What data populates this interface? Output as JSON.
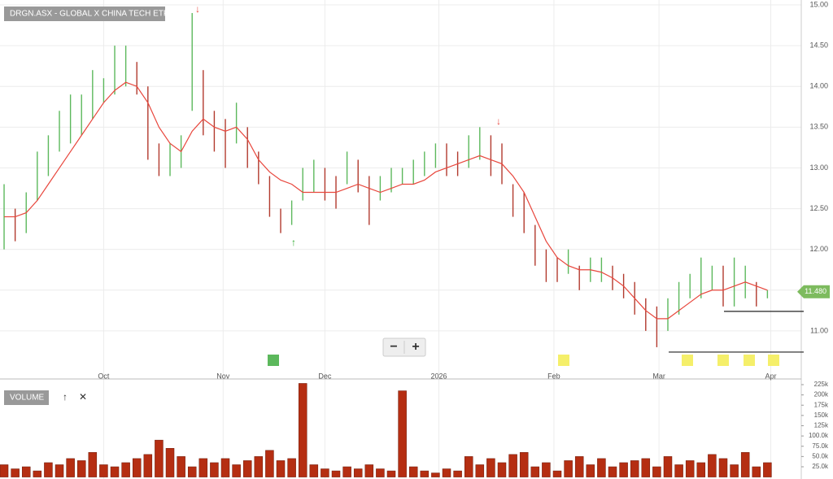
{
  "chart_data": {
    "type": "ohlc",
    "title": "DRGN.ASX - GLOBAL X CHINA TECH ETF",
    "up_color": "#5cb85c",
    "down_color": "#b23a2e",
    "ma_color": "#e8463c",
    "x": [
      0,
      1,
      2,
      3,
      4,
      5,
      6,
      7,
      8,
      9,
      10,
      11,
      12,
      13,
      14,
      15,
      16,
      17,
      18,
      19,
      20,
      21,
      22,
      23,
      24,
      25,
      26,
      27,
      28,
      29,
      30,
      31,
      32,
      33,
      34,
      35,
      36,
      37,
      38,
      39,
      40,
      41,
      42,
      43,
      44,
      45,
      46,
      47,
      48,
      49,
      50,
      51,
      52,
      53,
      54,
      55,
      56,
      57,
      58,
      59,
      60,
      61,
      62,
      63,
      64,
      65,
      66,
      67,
      68,
      69
    ],
    "high": [
      12.8,
      12.5,
      12.7,
      13.2,
      13.4,
      13.7,
      13.9,
      13.9,
      14.2,
      14.1,
      14.5,
      14.5,
      14.3,
      14.0,
      13.3,
      13.3,
      13.4,
      14.9,
      14.2,
      13.7,
      13.6,
      13.8,
      13.5,
      13.2,
      12.9,
      12.5,
      12.6,
      13.0,
      13.1,
      13.0,
      12.9,
      13.2,
      13.1,
      12.9,
      12.9,
      13.0,
      13.0,
      13.1,
      13.2,
      13.3,
      13.3,
      13.2,
      13.4,
      13.5,
      13.4,
      13.3,
      12.8,
      12.7,
      12.3,
      12.0,
      11.9,
      12.0,
      11.8,
      11.9,
      11.9,
      11.8,
      11.7,
      11.6,
      11.4,
      11.3,
      11.4,
      11.6,
      11.7,
      11.9,
      11.8,
      11.8,
      11.9,
      11.8,
      11.6,
      11.5
    ],
    "low": [
      12.0,
      12.1,
      12.2,
      12.6,
      12.9,
      13.2,
      13.3,
      13.4,
      13.6,
      13.8,
      13.9,
      14.0,
      13.9,
      13.1,
      12.9,
      12.9,
      13.0,
      13.7,
      13.4,
      13.2,
      13.0,
      13.3,
      13.0,
      12.8,
      12.4,
      12.2,
      12.3,
      12.6,
      12.7,
      12.6,
      12.5,
      12.8,
      12.7,
      12.3,
      12.6,
      12.7,
      12.8,
      12.8,
      12.9,
      13.0,
      12.9,
      12.9,
      13.0,
      13.1,
      12.9,
      12.8,
      12.4,
      12.2,
      11.8,
      11.6,
      11.6,
      11.7,
      11.5,
      11.6,
      11.6,
      11.5,
      11.4,
      11.2,
      11.0,
      10.8,
      11.0,
      11.2,
      11.4,
      11.4,
      11.5,
      11.3,
      11.3,
      11.4,
      11.3,
      11.4
    ],
    "ma": [
      12.4,
      12.4,
      12.45,
      12.6,
      12.8,
      13.0,
      13.2,
      13.4,
      13.6,
      13.8,
      13.95,
      14.05,
      14.0,
      13.8,
      13.5,
      13.3,
      13.2,
      13.45,
      13.6,
      13.5,
      13.45,
      13.5,
      13.35,
      13.1,
      12.95,
      12.85,
      12.8,
      12.7,
      12.7,
      12.7,
      12.7,
      12.75,
      12.8,
      12.75,
      12.7,
      12.75,
      12.8,
      12.8,
      12.85,
      12.95,
      13.0,
      13.05,
      13.1,
      13.15,
      13.1,
      13.05,
      12.9,
      12.7,
      12.4,
      12.1,
      11.9,
      11.8,
      11.75,
      11.75,
      11.72,
      11.65,
      11.55,
      11.4,
      11.25,
      11.15,
      11.15,
      11.25,
      11.35,
      11.45,
      11.5,
      11.5,
      11.55,
      11.6,
      11.55,
      11.5
    ],
    "last_price": 11.48,
    "last_price_label": "11.480",
    "levels": [
      11.24,
      10.74
    ],
    "xlim": [
      -0.37,
      72.06
    ],
    "xticks": [
      {
        "value": 9,
        "label": "Oct"
      },
      {
        "value": 19.8,
        "label": "Nov"
      },
      {
        "value": 29,
        "label": "Dec"
      },
      {
        "value": 39.3,
        "label": "2026"
      },
      {
        "value": 49.7,
        "label": "Feb"
      },
      {
        "value": 59.2,
        "label": "Mar"
      },
      {
        "value": 69.3,
        "label": "Apr"
      }
    ],
    "ylim": [
      10.52,
      15.06
    ],
    "yticks": [
      {
        "value": 11,
        "label": "11.00"
      },
      {
        "value": 11.5,
        "label": "11.50"
      },
      {
        "value": 12,
        "label": "12.00"
      },
      {
        "value": 12.5,
        "label": "12.50"
      },
      {
        "value": 13,
        "label": "13.00"
      },
      {
        "value": 13.5,
        "label": "13.50"
      },
      {
        "value": 14,
        "label": "14.00"
      },
      {
        "value": 14.5,
        "label": "14.50"
      },
      {
        "value": 15,
        "label": "15.00"
      }
    ],
    "volume_title": "VOLUME",
    "volume_color": "#b52e12",
    "volume": [
      30000,
      20000,
      25000,
      15000,
      35000,
      30000,
      45000,
      40000,
      60000,
      30000,
      25000,
      35000,
      45000,
      55000,
      90000,
      70000,
      50000,
      25000,
      45000,
      35000,
      45000,
      30000,
      40000,
      50000,
      65000,
      40000,
      45000,
      228000,
      30000,
      20000,
      15000,
      25000,
      20000,
      30000,
      20000,
      15000,
      210000,
      25000,
      15000,
      10000,
      20000,
      15000,
      50000,
      30000,
      45000,
      35000,
      55000,
      60000,
      25000,
      35000,
      15000,
      40000,
      50000,
      30000,
      45000,
      25000,
      35000,
      40000,
      45000,
      25000,
      50000,
      30000,
      40000,
      35000,
      55000,
      45000,
      30000,
      60000,
      25000,
      35000
    ],
    "vlim": [
      0,
      230900
    ],
    "vticks": [
      {
        "value": 25000,
        "label": "25.0k"
      },
      {
        "value": 50000,
        "label": "50.0k"
      },
      {
        "value": 75000,
        "label": "75.0k"
      },
      {
        "value": 100000,
        "label": "100.0k"
      },
      {
        "value": 125000,
        "label": "125k"
      },
      {
        "value": 150000,
        "label": "150k"
      },
      {
        "value": 175000,
        "label": "175k"
      },
      {
        "value": 200000,
        "label": "200k"
      },
      {
        "value": 225000,
        "label": "225k"
      }
    ],
    "zoom_out": "−",
    "zoom_in": "+"
  }
}
